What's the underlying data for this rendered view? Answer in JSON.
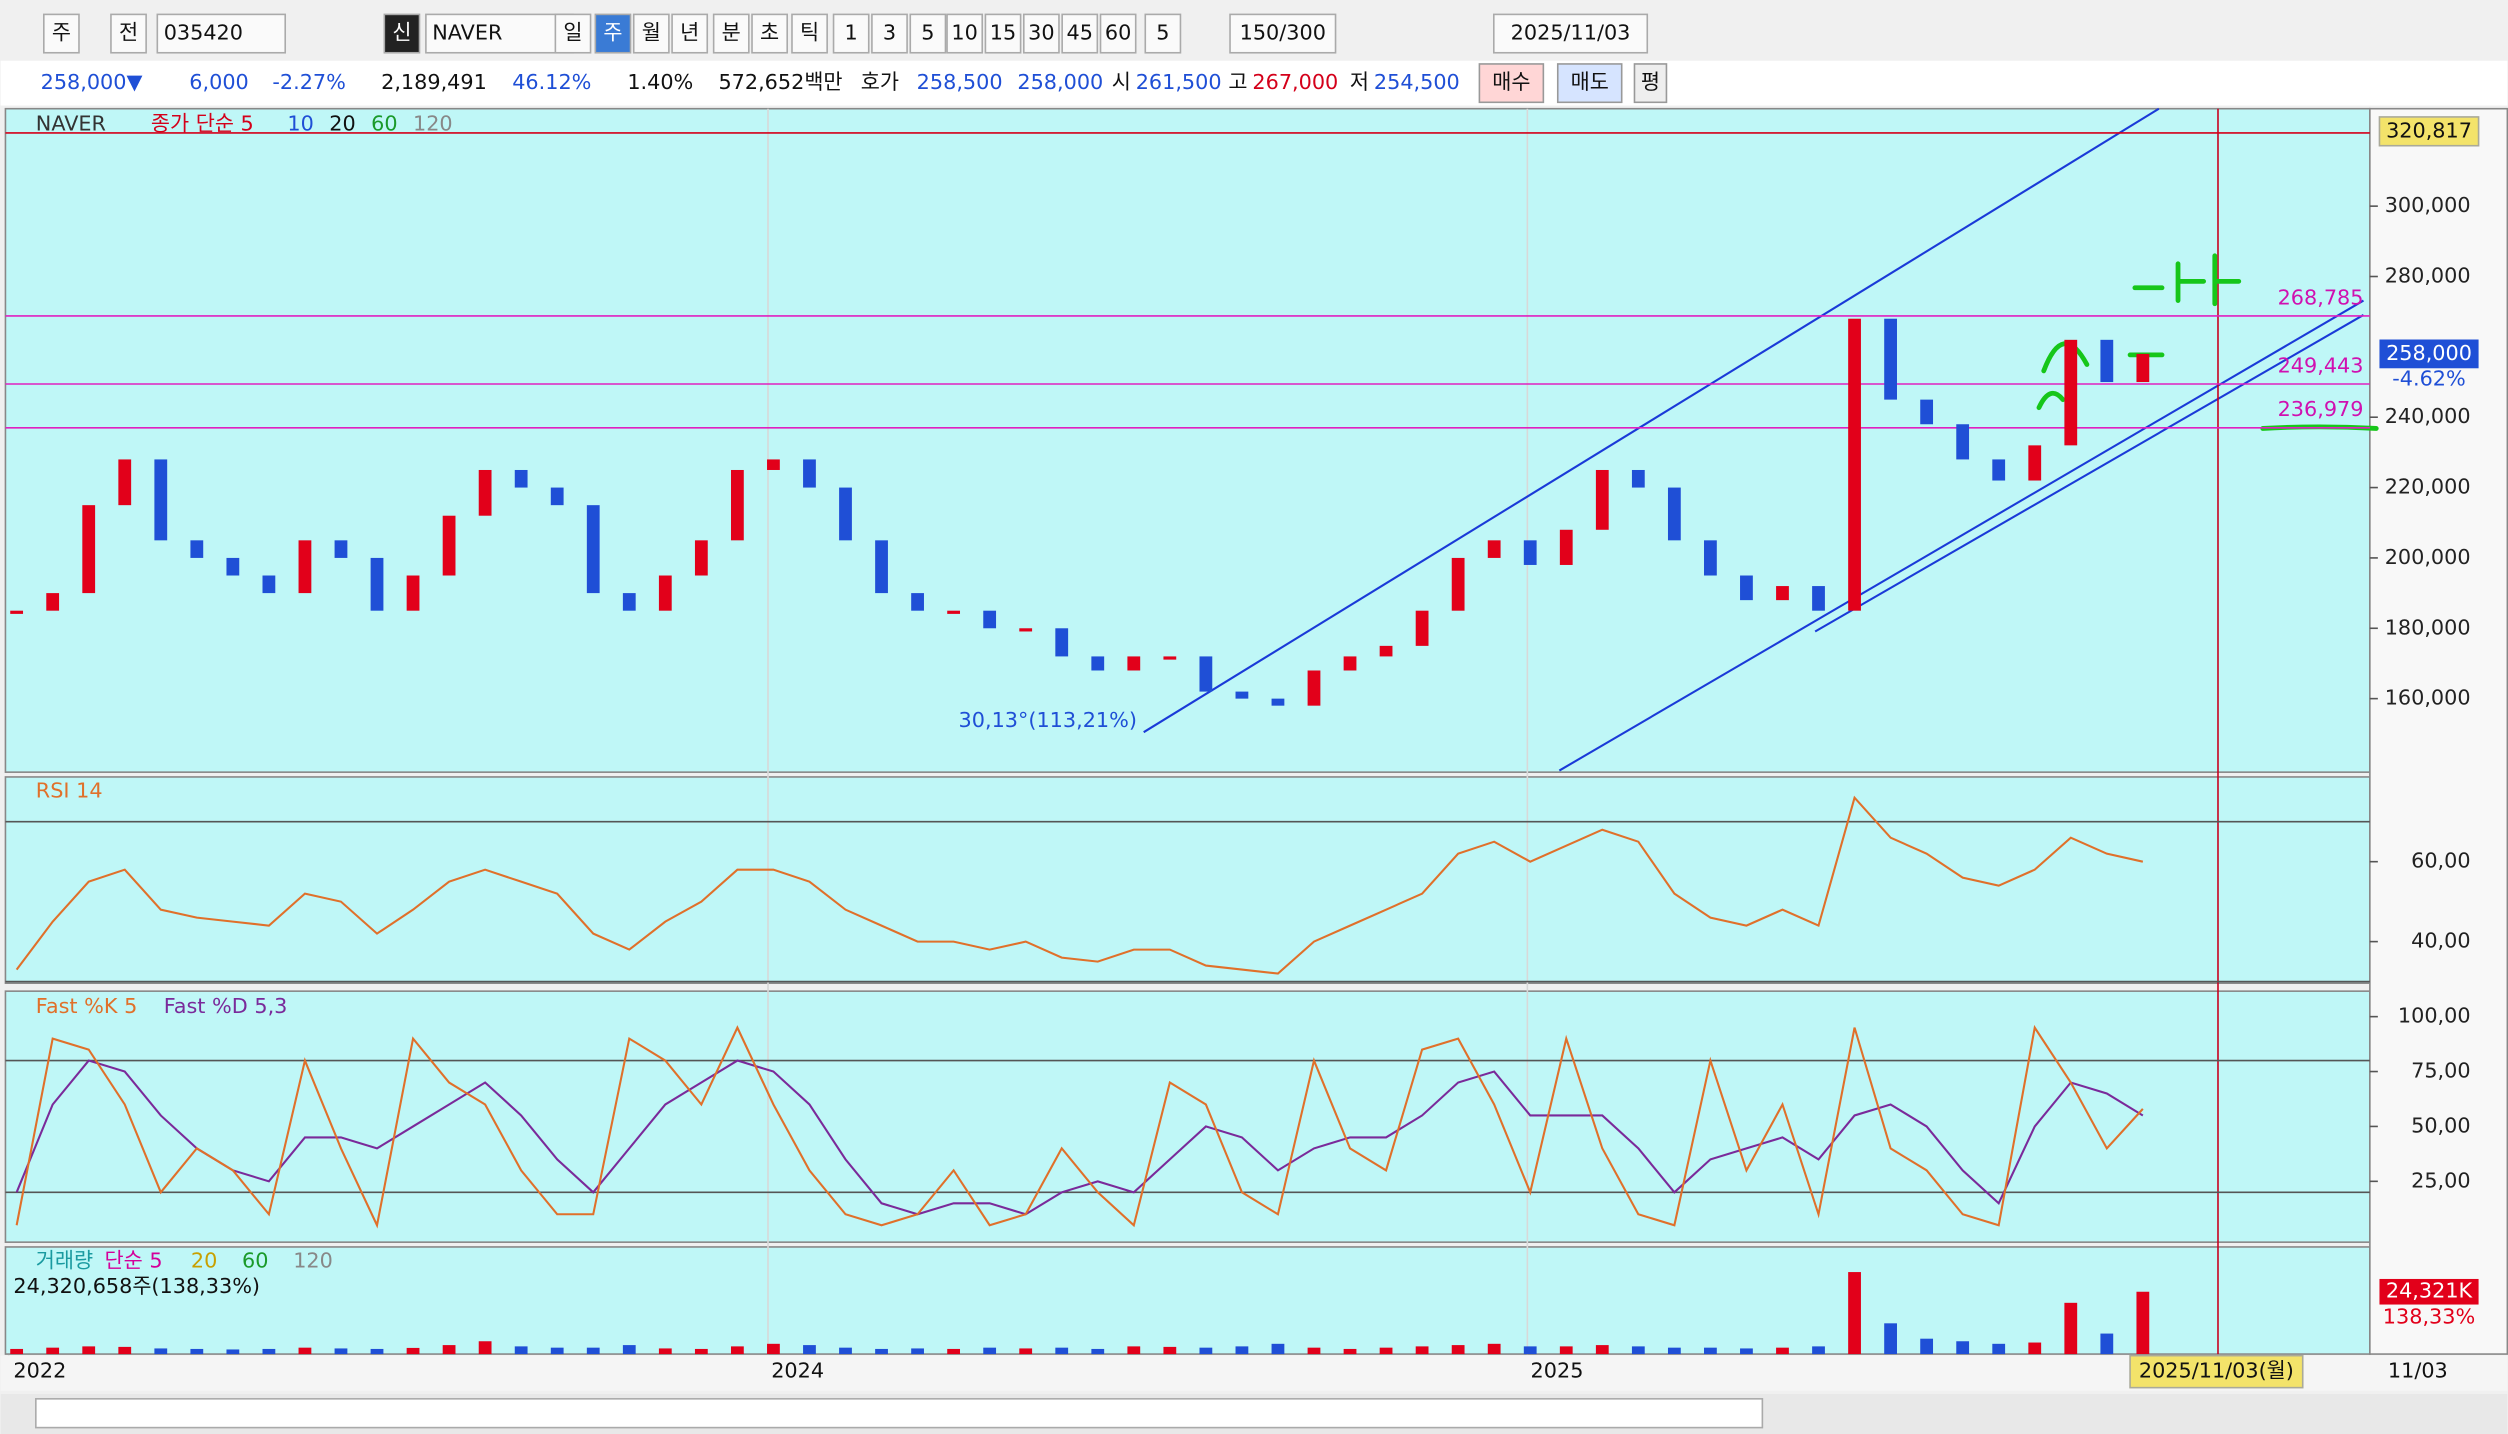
{
  "toolbar": {
    "row1": [
      "주",
      "전",
      "035420",
      "신",
      "NAVER",
      "일",
      "주",
      "월",
      "년",
      "분",
      "초",
      "틱",
      "1",
      "3",
      "5",
      "10",
      "15",
      "30",
      "45",
      "60",
      "5",
      "150/300",
      "2025/11/03"
    ],
    "row2": [
      "258,000▼",
      "6,000",
      "-2.27%",
      "2,189,491",
      "46.12%",
      "1.40%",
      "572,652백만",
      "호가",
      "258,500",
      "258,000",
      "시",
      "261,500",
      "고",
      "267,000",
      "저",
      "254,500",
      "매수",
      "매도",
      "평"
    ]
  },
  "price_pane": {
    "title": "NAVER",
    "legend": [
      "종가 단순 5",
      "10",
      "20",
      "60",
      "120"
    ],
    "annotation": "30,13°(113,21%)",
    "ylim": [
      139100,
      327700
    ],
    "yticks": [
      {
        "value": 300000,
        "label": "300,000"
      },
      {
        "value": 280000,
        "label": "280,000"
      },
      {
        "value": 240000,
        "label": "240,000"
      },
      {
        "value": 220000,
        "label": "220,000"
      },
      {
        "value": 200000,
        "label": "200,000"
      },
      {
        "value": 180000,
        "label": "180,000"
      },
      {
        "value": 160000,
        "label": "160,000"
      }
    ],
    "close": [
      185000,
      190000,
      215000,
      228000,
      205000,
      200000,
      195000,
      190000,
      205000,
      200000,
      185000,
      195000,
      212000,
      225000,
      220000,
      215000,
      190000,
      185000,
      195000,
      205000,
      225000,
      228000,
      220000,
      205000,
      190000,
      185000,
      185000,
      180000,
      180000,
      172000,
      168000,
      172000,
      172000,
      162000,
      160000,
      158000,
      168000,
      172000,
      175000,
      185000,
      200000,
      205000,
      198000,
      208000,
      225000,
      220000,
      205000,
      195000,
      188000,
      192000,
      185000,
      268000,
      245000,
      238000,
      228000,
      222000,
      232000,
      262000,
      250000,
      258000
    ],
    "levels": [
      {
        "value": 320817,
        "label": "320,817"
      },
      {
        "value": 268785,
        "label": "268,785"
      },
      {
        "value": 249443,
        "label": "249,443"
      },
      {
        "value": 236979,
        "label": "236,979"
      }
    ],
    "current": {
      "value": 258000,
      "label": "258,000"
    },
    "current_change": "-4.62%"
  },
  "rsi_pane": {
    "title": "RSI 14",
    "ylim": [
      29.6,
      81.2
    ],
    "yticks": [
      {
        "value": 60,
        "label": "60,00"
      },
      {
        "value": 40,
        "label": "40,00"
      }
    ],
    "levels": [
      70,
      30
    ],
    "values": [
      33,
      45,
      55,
      58,
      48,
      46,
      45,
      44,
      52,
      50,
      42,
      48,
      55,
      58,
      55,
      52,
      42,
      38,
      45,
      50,
      58,
      58,
      55,
      48,
      44,
      40,
      40,
      38,
      40,
      36,
      35,
      38,
      38,
      34,
      33,
      32,
      40,
      44,
      48,
      52,
      62,
      65,
      60,
      64,
      68,
      65,
      52,
      46,
      44,
      48,
      44,
      76,
      66,
      62,
      56,
      54,
      58,
      66,
      62,
      60
    ]
  },
  "stoch_pane": {
    "legend": [
      "Fast %K 5",
      "Fast %D 5,3"
    ],
    "ylim": [
      -2.7,
      111.6
    ],
    "yticks": [
      {
        "value": 100,
        "label": "100,00"
      },
      {
        "value": 75,
        "label": "75,00"
      },
      {
        "value": 50,
        "label": "50,00"
      },
      {
        "value": 25,
        "label": "25,00"
      }
    ],
    "levels": [
      80,
      20
    ],
    "k": [
      5,
      90,
      85,
      60,
      20,
      40,
      30,
      10,
      80,
      40,
      5,
      90,
      70,
      60,
      30,
      10,
      10,
      90,
      80,
      60,
      95,
      60,
      30,
      10,
      5,
      10,
      30,
      5,
      10,
      40,
      20,
      5,
      70,
      60,
      20,
      10,
      80,
      40,
      30,
      85,
      90,
      60,
      20,
      90,
      40,
      10,
      5,
      80,
      30,
      60,
      10,
      95,
      40,
      30,
      10,
      5,
      95,
      70,
      40,
      58
    ],
    "d": [
      20,
      60,
      80,
      75,
      55,
      40,
      30,
      25,
      45,
      45,
      40,
      50,
      60,
      70,
      55,
      35,
      20,
      40,
      60,
      70,
      80,
      75,
      60,
      35,
      15,
      10,
      15,
      15,
      10,
      20,
      25,
      20,
      35,
      50,
      45,
      30,
      40,
      45,
      45,
      55,
      70,
      75,
      55,
      55,
      55,
      40,
      20,
      35,
      40,
      45,
      35,
      55,
      60,
      50,
      30,
      15,
      50,
      70,
      65,
      55
    ]
  },
  "volume_pane": {
    "legend": [
      "거래량",
      "단순 5",
      "20",
      "60",
      "120"
    ],
    "info": "24,320,658주(138,33%)",
    "ylim": [
      0,
      41800
    ],
    "values": [
      2000,
      2500,
      3000,
      2800,
      2200,
      2000,
      1800,
      2000,
      2500,
      2200,
      2000,
      2400,
      3500,
      5000,
      3000,
      2500,
      2500,
      3500,
      2200,
      2000,
      3000,
      4000,
      3500,
      2500,
      2000,
      2200,
      2000,
      2500,
      2200,
      2500,
      2000,
      3000,
      2800,
      2500,
      3000,
      4000,
      2500,
      2000,
      2500,
      3000,
      3500,
      4000,
      3000,
      3000,
      3500,
      3000,
      2500,
      2500,
      2200,
      2500,
      3000,
      32000,
      12000,
      6000,
      5000,
      4000,
      4500,
      20000,
      8000,
      24321
    ],
    "last": {
      "value": 24321,
      "label": "24,321K"
    },
    "ratio": "138,33%"
  },
  "x_axis": {
    "labels": [
      "2022",
      "2024",
      "2025"
    ],
    "cursor": "2025/11/03(월)",
    "end": "11/03"
  }
}
